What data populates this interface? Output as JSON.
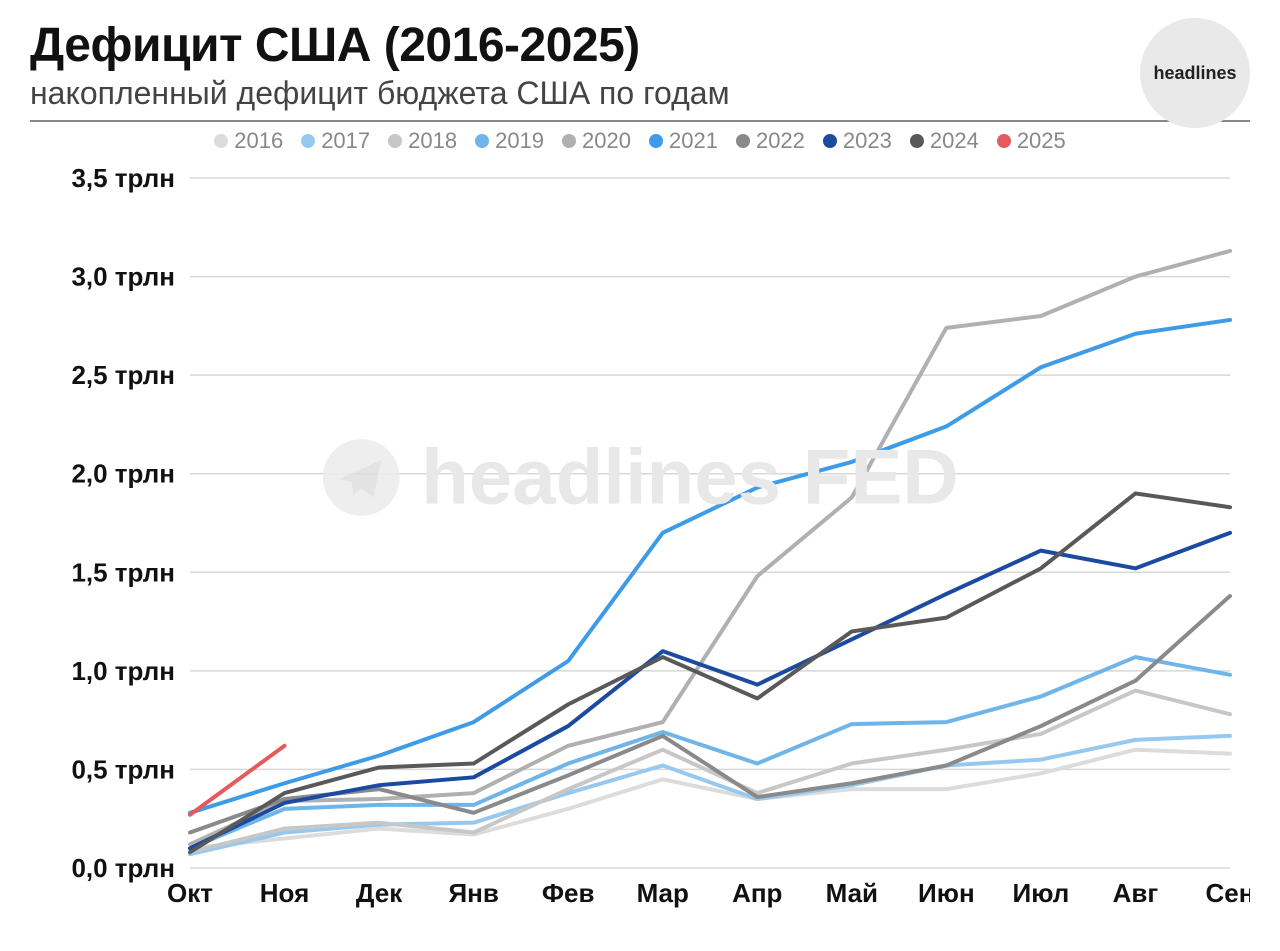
{
  "title": "Дефицит США (2016-2025)",
  "subtitle": "накопленный дефицит бюджета США по годам",
  "logo_text": "headlines",
  "watermark_text": "headlines FED",
  "chart": {
    "type": "line",
    "background_color": "#ffffff",
    "grid_color": "#d8d8d8",
    "axis_color": "#111111",
    "title_fontsize": 48,
    "subtitle_fontsize": 32,
    "tick_fontsize": 26,
    "legend_fontsize": 22,
    "line_width": 4,
    "x_categories": [
      "Окт",
      "Ноя",
      "Дек",
      "Янв",
      "Фев",
      "Мар",
      "Апр",
      "Май",
      "Июн",
      "Июл",
      "Авг",
      "Сен"
    ],
    "ylim": [
      0.0,
      3.5
    ],
    "ytick_step": 0.5,
    "y_tick_labels": [
      "0,0 трлн",
      "0,5 трлн",
      "1,0 трлн",
      "1,5 трлн",
      "2,0 трлн",
      "2,5 трлн",
      "3,0 трлн",
      "3,5 трлн"
    ],
    "series": [
      {
        "name": "2016",
        "color": "#dcdcdc",
        "values": [
          0.1,
          0.15,
          0.2,
          0.17,
          0.3,
          0.45,
          0.35,
          0.4,
          0.4,
          0.48,
          0.6,
          0.58
        ]
      },
      {
        "name": "2017",
        "color": "#97c9f0",
        "values": [
          0.07,
          0.18,
          0.22,
          0.23,
          0.38,
          0.52,
          0.35,
          0.42,
          0.52,
          0.55,
          0.65,
          0.67
        ]
      },
      {
        "name": "2018",
        "color": "#c7c7c7",
        "values": [
          0.08,
          0.2,
          0.23,
          0.18,
          0.4,
          0.6,
          0.38,
          0.53,
          0.6,
          0.68,
          0.9,
          0.78
        ]
      },
      {
        "name": "2019",
        "color": "#6fb5ea",
        "values": [
          0.1,
          0.3,
          0.32,
          0.32,
          0.53,
          0.69,
          0.53,
          0.73,
          0.74,
          0.87,
          1.07,
          0.98
        ]
      },
      {
        "name": "2020",
        "color": "#b0b0b0",
        "values": [
          0.12,
          0.34,
          0.35,
          0.38,
          0.62,
          0.74,
          1.48,
          1.88,
          2.74,
          2.8,
          3.0,
          3.13
        ]
      },
      {
        "name": "2021",
        "color": "#3d9be8",
        "values": [
          0.28,
          0.43,
          0.57,
          0.74,
          1.05,
          1.7,
          1.93,
          2.06,
          2.24,
          2.54,
          2.71,
          2.78
        ]
      },
      {
        "name": "2022",
        "color": "#8a8a8a",
        "values": [
          0.18,
          0.35,
          0.4,
          0.28,
          0.47,
          0.67,
          0.36,
          0.43,
          0.52,
          0.72,
          0.95,
          1.38
        ]
      },
      {
        "name": "2023",
        "color": "#1b4aa0",
        "values": [
          0.1,
          0.33,
          0.42,
          0.46,
          0.72,
          1.1,
          0.93,
          1.16,
          1.39,
          1.61,
          1.52,
          1.7
        ]
      },
      {
        "name": "2024",
        "color": "#595959",
        "values": [
          0.08,
          0.38,
          0.51,
          0.53,
          0.83,
          1.07,
          0.86,
          1.2,
          1.27,
          1.52,
          1.9,
          1.83
        ]
      },
      {
        "name": "2025",
        "color": "#e55a5a",
        "values": [
          0.27,
          0.62
        ]
      }
    ]
  }
}
